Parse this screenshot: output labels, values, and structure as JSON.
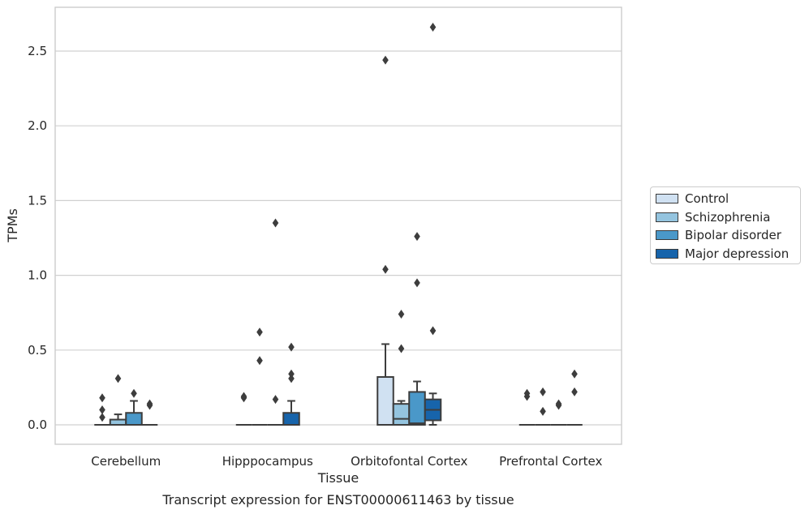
{
  "chart_data": {
    "type": "box",
    "caption": "Transcript expression for ENST00000611463 by tissue",
    "xlabel": "Tissue",
    "ylabel": "TPMs",
    "ylim": [
      -0.13,
      2.8
    ],
    "yticks": [
      "0.0",
      "0.5",
      "1.0",
      "1.5",
      "2.0",
      "2.5"
    ],
    "categories": [
      "Cerebellum",
      "Hipppocampus",
      "Orbitofontal Cortex",
      "Prefrontal Cortex"
    ],
    "grid": "horizontal",
    "legend_position": "outside-right",
    "series": [
      {
        "name": "Control",
        "color": "#d0e1f2",
        "boxes": [
          {
            "q1": 0,
            "median": 0,
            "q3": 0,
            "whisker_low": 0,
            "whisker_high": 0,
            "outliers": [
              0.05,
              0.1,
              0.18
            ]
          },
          {
            "q1": 0,
            "median": 0,
            "q3": 0,
            "whisker_low": 0,
            "whisker_high": 0,
            "outliers": [
              0.18,
              0.19
            ]
          },
          {
            "q1": 0,
            "median": 0,
            "q3": 0.32,
            "whisker_low": 0,
            "whisker_high": 0.54,
            "outliers": [
              1.04,
              2.44
            ]
          },
          {
            "q1": 0,
            "median": 0,
            "q3": 0,
            "whisker_low": 0,
            "whisker_high": 0,
            "outliers": [
              0.19,
              0.21
            ]
          }
        ]
      },
      {
        "name": "Schizophrenia",
        "color": "#94c4df",
        "boxes": [
          {
            "q1": 0,
            "median": 0,
            "q3": 0.035,
            "whisker_low": 0,
            "whisker_high": 0.07,
            "outliers": [
              0.31
            ]
          },
          {
            "q1": 0,
            "median": 0,
            "q3": 0,
            "whisker_low": 0,
            "whisker_high": 0,
            "outliers": [
              0.43,
              0.62
            ]
          },
          {
            "q1": 0,
            "median": 0.04,
            "q3": 0.14,
            "whisker_low": 0,
            "whisker_high": 0.16,
            "outliers": [
              0.51,
              0.74
            ]
          },
          {
            "q1": 0,
            "median": 0,
            "q3": 0,
            "whisker_low": 0,
            "whisker_high": 0,
            "outliers": [
              0.09,
              0.22
            ]
          }
        ]
      },
      {
        "name": "Bipolar disorder",
        "color": "#4a98c9",
        "boxes": [
          {
            "q1": 0,
            "median": 0,
            "q3": 0.08,
            "whisker_low": 0,
            "whisker_high": 0.16,
            "outliers": [
              0.21
            ]
          },
          {
            "q1": 0,
            "median": 0,
            "q3": 0,
            "whisker_low": 0,
            "whisker_high": 0,
            "outliers": [
              0.17,
              1.35
            ]
          },
          {
            "q1": 0,
            "median": 0.01,
            "q3": 0.22,
            "whisker_low": 0,
            "whisker_high": 0.29,
            "outliers": [
              0.95,
              1.26
            ]
          },
          {
            "q1": 0,
            "median": 0,
            "q3": 0,
            "whisker_low": 0,
            "whisker_high": 0,
            "outliers": [
              0.13,
              0.14
            ]
          }
        ]
      },
      {
        "name": "Major depression",
        "color": "#1764ab",
        "boxes": [
          {
            "q1": 0,
            "median": 0,
            "q3": 0,
            "whisker_low": 0,
            "whisker_high": 0,
            "outliers": [
              0.13,
              0.14
            ]
          },
          {
            "q1": 0,
            "median": 0,
            "q3": 0.08,
            "whisker_low": 0,
            "whisker_high": 0.16,
            "outliers": [
              0.31,
              0.34,
              0.52
            ]
          },
          {
            "q1": 0.03,
            "median": 0.1,
            "q3": 0.17,
            "whisker_low": 0,
            "whisker_high": 0.21,
            "outliers": [
              0.63,
              2.66
            ]
          },
          {
            "q1": 0,
            "median": 0,
            "q3": 0,
            "whisker_low": 0,
            "whisker_high": 0,
            "outliers": [
              0.22,
              0.34
            ]
          }
        ]
      }
    ]
  }
}
